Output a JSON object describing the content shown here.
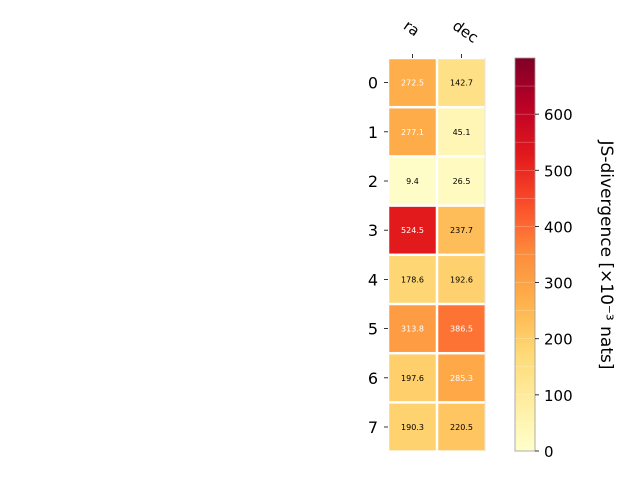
{
  "chart_data": {
    "type": "heatmap",
    "title": "",
    "columns": [
      "ra",
      "dec"
    ],
    "rows": [
      "0",
      "1",
      "2",
      "3",
      "4",
      "5",
      "6",
      "7"
    ],
    "values": [
      [
        272.5,
        142.7
      ],
      [
        277.1,
        45.1
      ],
      [
        9.4,
        26.5
      ],
      [
        524.5,
        237.7
      ],
      [
        178.6,
        192.6
      ],
      [
        313.8,
        386.5
      ],
      [
        197.6,
        285.3
      ],
      [
        190.3,
        220.5
      ]
    ],
    "value_labels": [
      [
        "272.5",
        "142.7"
      ],
      [
        "277.1",
        "45.1"
      ],
      [
        "9.4",
        "26.5"
      ],
      [
        "524.5",
        "237.7"
      ],
      [
        "178.6",
        "192.6"
      ],
      [
        "313.8",
        "386.5"
      ],
      [
        "197.6",
        "285.3"
      ],
      [
        "190.3",
        "220.5"
      ]
    ],
    "colorbar": {
      "label": "JS-divergence [×10⁻³ nats]",
      "ticks": [
        "0",
        "100",
        "200",
        "300",
        "400",
        "500",
        "600"
      ],
      "tick_values": [
        0,
        100,
        200,
        300,
        400,
        500,
        600
      ],
      "range": [
        0,
        700
      ],
      "colormap": "YlOrRd"
    },
    "grid": false,
    "legend": "none"
  }
}
